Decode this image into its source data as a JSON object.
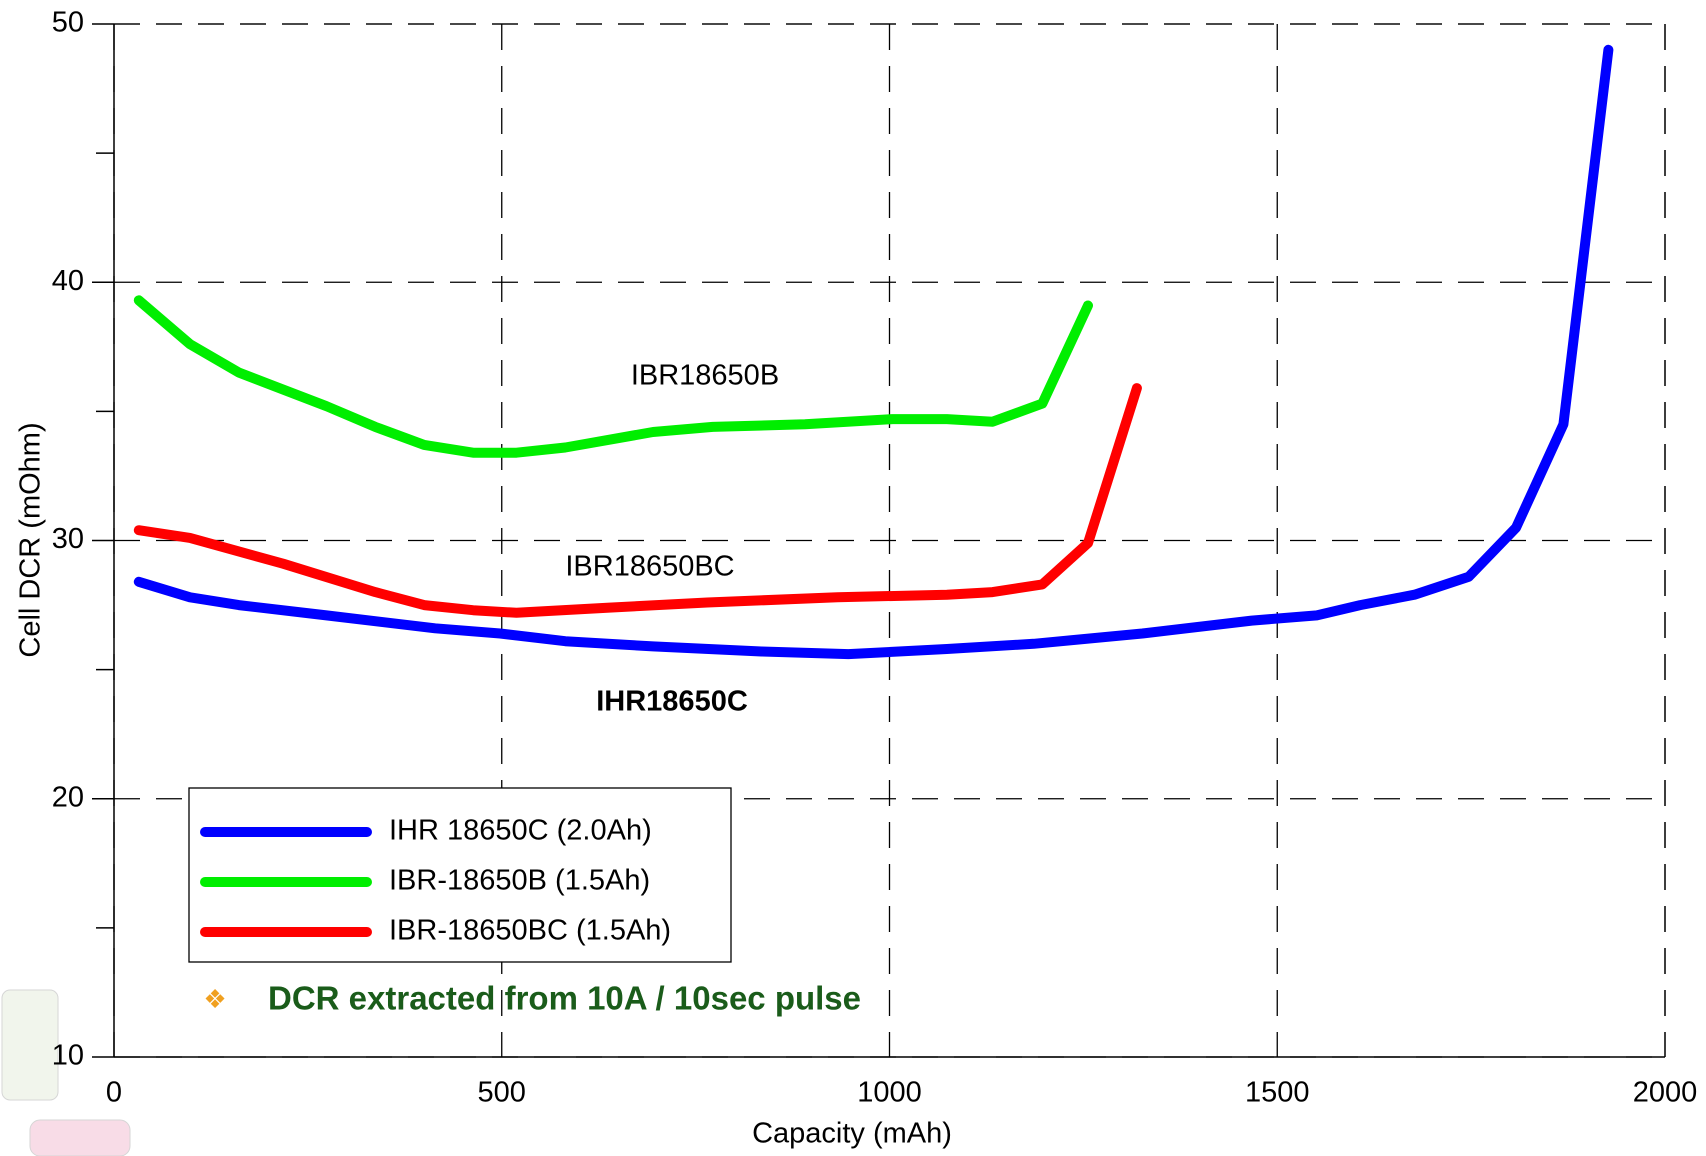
{
  "chart_data": {
    "type": "line",
    "x_label": "Capacity (mAh)",
    "y_label": "Cell DCR (mOhm)",
    "xlim": [
      0,
      2000
    ],
    "xticks": [
      0,
      500,
      1000,
      1500,
      2000
    ],
    "ylim": [
      10,
      50
    ],
    "yticks": [
      10,
      20,
      30,
      40,
      50
    ],
    "y_minor_ticks": [
      15,
      25,
      35,
      45
    ],
    "grid": true,
    "legend": "lower left",
    "annotations": [
      "IBR18650B",
      "IBR18650BC",
      "IHR18650C"
    ],
    "note": "DCR extracted from 10A / 10sec pulse",
    "series": [
      {
        "name": "IHR 18650C (2.0Ah)",
        "color": "#0000ff",
        "x": [
          32,
          98,
          161,
          274,
          414,
          498,
          582,
          695,
          835,
          947,
          1074,
          1186,
          1326,
          1467,
          1551,
          1607,
          1677,
          1747,
          1808,
          1869,
          1927
        ],
        "values": [
          28.4,
          27.8,
          27.5,
          27.1,
          26.6,
          26.4,
          26.1,
          25.9,
          25.7,
          25.6,
          25.8,
          26.0,
          26.4,
          26.9,
          27.1,
          27.5,
          27.9,
          28.6,
          30.5,
          34.5,
          49.0
        ]
      },
      {
        "name": "IBR-18650B (1.5Ah)",
        "color": "#00ee00",
        "x": [
          32,
          98,
          161,
          274,
          337,
          400,
          463,
          519,
          582,
          695,
          772,
          891,
          1004,
          1074,
          1133,
          1197,
          1256
        ],
        "values": [
          39.3,
          37.6,
          36.5,
          35.2,
          34.4,
          33.7,
          33.4,
          33.4,
          33.6,
          34.2,
          34.4,
          34.5,
          34.7,
          34.7,
          34.6,
          35.3,
          39.1
        ]
      },
      {
        "name": "IBR-18650BC (1.5Ah)",
        "color": "#ff0000",
        "x": [
          32,
          98,
          218,
          337,
          400,
          463,
          519,
          639,
          765,
          933,
          1074,
          1133,
          1197,
          1256,
          1319
        ],
        "values": [
          30.4,
          30.1,
          29.1,
          28.0,
          27.5,
          27.3,
          27.2,
          27.4,
          27.6,
          27.8,
          27.9,
          28.0,
          28.3,
          29.9,
          35.9
        ]
      }
    ]
  }
}
